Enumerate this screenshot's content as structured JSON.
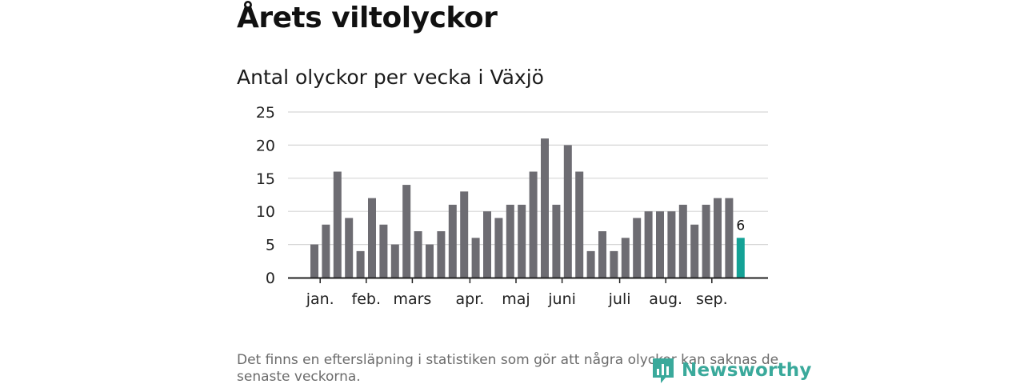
{
  "headline": "Årets viltolyckor",
  "subtitle": "Antal olyckor per vecka i Växjö",
  "footnote": "Det finns en eftersläpning i statistiken som gör att några olyckor kan saknas de senaste veckorna.",
  "brand": "Newsworthy",
  "colors": {
    "bar": "#6d6c72",
    "highlight": "#14a296",
    "grid": "#d6d6d6",
    "axis": "#222222",
    "brand": "#3aa99b"
  },
  "chart_data": {
    "type": "bar",
    "ylim": [
      0,
      25
    ],
    "yticks": [
      0,
      5,
      10,
      15,
      20,
      25
    ],
    "grid": true,
    "values": [
      5,
      8,
      16,
      9,
      4,
      12,
      8,
      5,
      14,
      7,
      5,
      7,
      11,
      13,
      6,
      10,
      9,
      11,
      11,
      16,
      21,
      11,
      20,
      16,
      4,
      7,
      4,
      6,
      9,
      10,
      10,
      10,
      11,
      8,
      11,
      12,
      12,
      6
    ],
    "highlight_index": 37,
    "highlight_label": "6",
    "month_labels": [
      {
        "label": "jan.",
        "week": 0.5
      },
      {
        "label": "feb.",
        "week": 4.5
      },
      {
        "label": "mars",
        "week": 8.5
      },
      {
        "label": "apr.",
        "week": 13.5
      },
      {
        "label": "maj",
        "week": 17.5
      },
      {
        "label": "juni",
        "week": 21.5
      },
      {
        "label": "juli",
        "week": 26.5
      },
      {
        "label": "aug.",
        "week": 30.5
      },
      {
        "label": "sep.",
        "week": 34.5
      }
    ]
  }
}
